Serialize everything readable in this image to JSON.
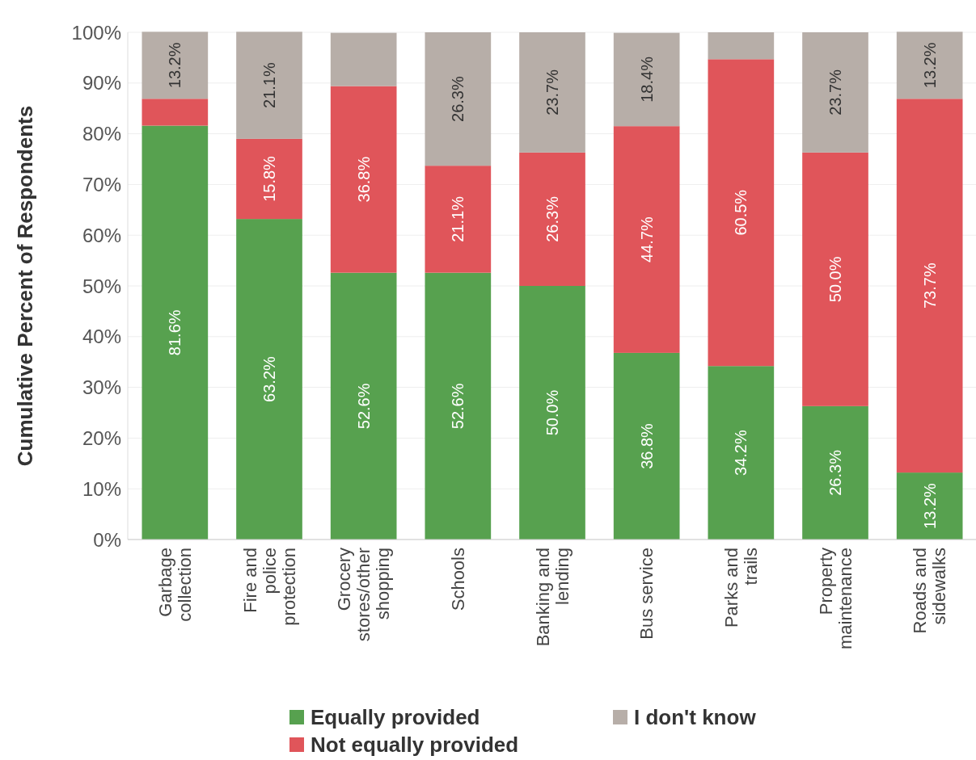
{
  "chart_data": {
    "type": "bar",
    "stacked": true,
    "ylabel": "Cumulative Percent of Respondents",
    "categories": [
      "Garbage collection",
      "Fire and police protection",
      "Grocery stores/other shopping",
      "Schools",
      "Banking and lending",
      "Bus service",
      "Parks and trails",
      "Property maintenance",
      "Roads and sidewalks"
    ],
    "series": [
      {
        "name": "Equally provided",
        "color": "#57a14f",
        "values": [
          81.6,
          63.2,
          52.6,
          52.6,
          50.0,
          36.8,
          34.2,
          26.3,
          13.2
        ],
        "value_labels": [
          "81.6%",
          "63.2%",
          "52.6%",
          "52.6%",
          "50.0%",
          "36.8%",
          "34.2%",
          "26.3%",
          "13.2%"
        ]
      },
      {
        "name": "Not equally provided",
        "color": "#e0555a",
        "values": [
          5.3,
          15.8,
          36.8,
          21.1,
          26.3,
          44.7,
          60.5,
          50.0,
          73.7
        ],
        "value_labels": [
          null,
          "15.8%",
          "36.8%",
          "21.1%",
          "26.3%",
          "44.7%",
          "60.5%",
          "50.0%",
          "73.7%"
        ]
      },
      {
        "name": "I don't know",
        "color": "#b7aea8",
        "values": [
          13.2,
          21.1,
          10.5,
          26.3,
          23.7,
          18.4,
          5.3,
          23.7,
          13.2
        ],
        "value_labels": [
          "13.2%",
          "21.1%",
          null,
          "26.3%",
          "23.7%",
          "18.4%",
          null,
          "23.7%",
          "13.2%"
        ]
      }
    ],
    "ylim": [
      0,
      100
    ],
    "yticks": [
      {
        "value": 0,
        "label": "0%"
      },
      {
        "value": 10,
        "label": "10%"
      },
      {
        "value": 20,
        "label": "20%"
      },
      {
        "value": 30,
        "label": "30%"
      },
      {
        "value": 40,
        "label": "40%"
      },
      {
        "value": 50,
        "label": "50%"
      },
      {
        "value": 60,
        "label": "60%"
      },
      {
        "value": 70,
        "label": "70%"
      },
      {
        "value": 80,
        "label": "80%"
      },
      {
        "value": 90,
        "label": "90%"
      },
      {
        "value": 100,
        "label": "100%"
      }
    ],
    "grid": "y",
    "legend": "bottom"
  }
}
